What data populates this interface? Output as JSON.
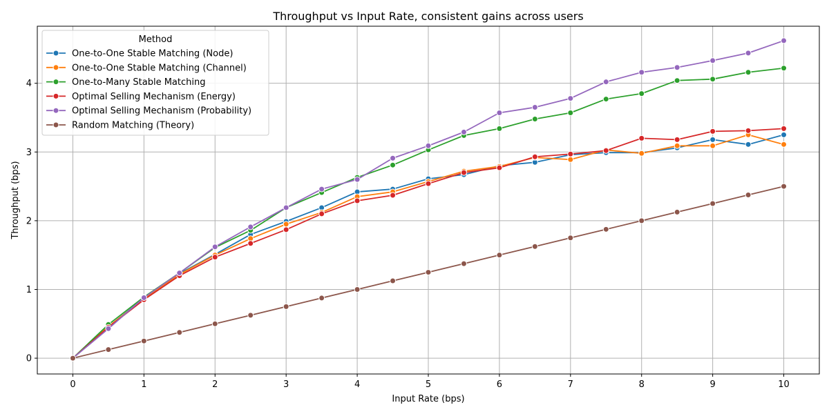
{
  "chart_data": {
    "type": "line",
    "title": "Throughput vs Input Rate, consistent gains across users",
    "xlabel": "Input Rate (bps)",
    "ylabel": "Throughput (bps)",
    "xlim": [
      -0.5,
      10.5
    ],
    "ylim": [
      -0.23,
      4.83
    ],
    "xticks": [
      0,
      1,
      2,
      3,
      4,
      5,
      6,
      7,
      8,
      9,
      10
    ],
    "yticks": [
      0,
      1,
      2,
      3,
      4
    ],
    "grid": true,
    "legend": {
      "title": "Method",
      "placement": "top-left"
    },
    "x": [
      0,
      0.5,
      1,
      1.5,
      2,
      2.5,
      3,
      3.5,
      4,
      4.5,
      5,
      5.5,
      6,
      6.5,
      7,
      7.5,
      8,
      8.5,
      9,
      9.5,
      10
    ],
    "series": [
      {
        "name": "One-to-One Stable Matching (Node)",
        "color": "#1f77b4",
        "values": [
          0,
          0.46,
          0.87,
          1.23,
          1.51,
          1.8,
          1.99,
          2.19,
          2.42,
          2.46,
          2.61,
          2.67,
          2.8,
          2.85,
          2.96,
          2.99,
          2.99,
          3.06,
          3.18,
          3.11,
          3.25
        ]
      },
      {
        "name": "One-to-One Stable Matching (Channel)",
        "color": "#ff7f0e",
        "values": [
          0,
          0.46,
          0.86,
          1.22,
          1.5,
          1.74,
          1.95,
          2.12,
          2.35,
          2.42,
          2.57,
          2.72,
          2.79,
          2.92,
          2.89,
          3.03,
          2.98,
          3.09,
          3.09,
          3.25,
          3.11
        ]
      },
      {
        "name": "One-to-Many Stable Matching",
        "color": "#2ca02c",
        "values": [
          0,
          0.49,
          0.89,
          1.24,
          1.61,
          1.86,
          2.19,
          2.41,
          2.63,
          2.81,
          3.03,
          3.24,
          3.34,
          3.48,
          3.57,
          3.77,
          3.85,
          4.04,
          4.06,
          4.16,
          4.22
        ]
      },
      {
        "name": "Optimal Selling Mechanism (Energy)",
        "color": "#d62728",
        "values": [
          0,
          0.45,
          0.85,
          1.2,
          1.47,
          1.67,
          1.87,
          2.1,
          2.29,
          2.37,
          2.54,
          2.7,
          2.77,
          2.93,
          2.97,
          3.02,
          3.2,
          3.18,
          3.3,
          3.31,
          3.34
        ]
      },
      {
        "name": "Optimal Selling Mechanism (Probability)",
        "color": "#9467bd",
        "values": [
          0,
          0.43,
          0.88,
          1.24,
          1.62,
          1.91,
          2.19,
          2.46,
          2.6,
          2.91,
          3.09,
          3.29,
          3.57,
          3.65,
          3.78,
          4.02,
          4.16,
          4.23,
          4.33,
          4.44,
          4.62
        ]
      },
      {
        "name": "Random Matching (Theory)",
        "color": "#8c564b",
        "values": [
          0,
          0.125,
          0.25,
          0.375,
          0.5,
          0.625,
          0.75,
          0.875,
          1.0,
          1.125,
          1.25,
          1.375,
          1.5,
          1.625,
          1.75,
          1.875,
          2.0,
          2.125,
          2.25,
          2.375,
          2.5
        ]
      }
    ]
  }
}
